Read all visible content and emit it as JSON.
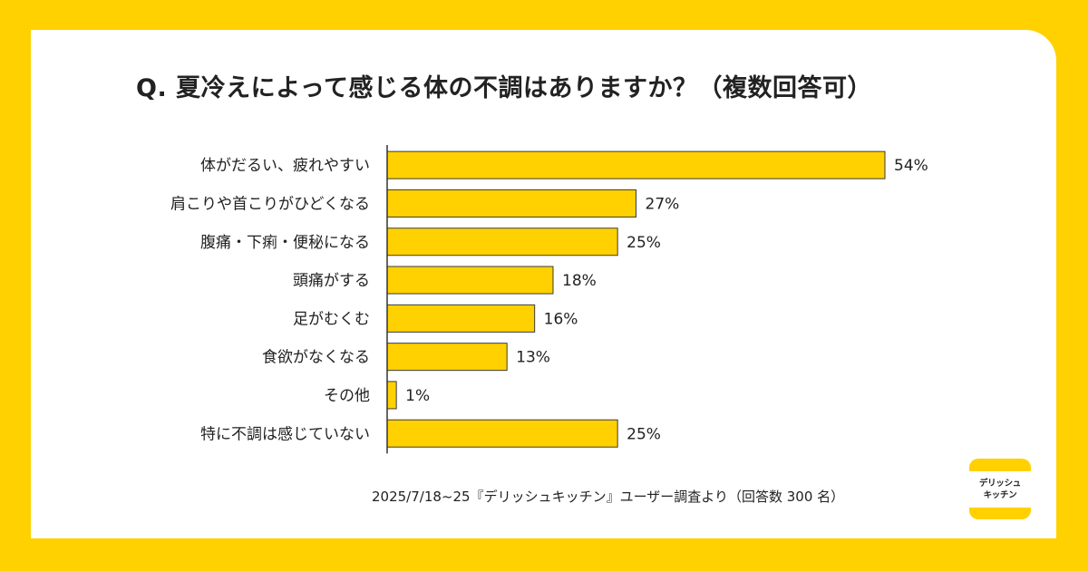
{
  "title": "Q. 夏冷えによって感じる体の不調はありますか？（複数回答可）",
  "source": "2025/7/18~25『デリッシュキッチン』ユーザー調査より（回答数 300 名）",
  "logo": {
    "line1": "デリッシュ",
    "line2": "キッチン"
  },
  "colors": {
    "background": "#FFD100",
    "bar": "#FFD100",
    "bar_border": "#3a3a3a",
    "text": "#222222"
  },
  "chart_data": {
    "type": "bar",
    "orientation": "horizontal",
    "title": "Q. 夏冷えによって感じる体の不調はありますか？（複数回答可）",
    "categories": [
      "体がだるい、疲れやすい",
      "肩こりや首こりがひどくなる",
      "腹痛・下痢・便秘になる",
      "頭痛がする",
      "足がむくむ",
      "食欲がなくなる",
      "その他",
      "特に不調は感じていない"
    ],
    "values": [
      54,
      27,
      25,
      18,
      16,
      13,
      1,
      25
    ],
    "value_labels": [
      "54%",
      "27%",
      "25%",
      "18%",
      "16%",
      "13%",
      "1%",
      "25%"
    ],
    "unit": "%",
    "xlim": [
      0,
      54
    ],
    "grid": false
  }
}
